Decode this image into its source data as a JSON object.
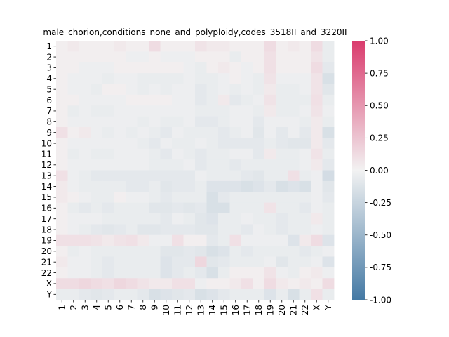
{
  "chart_data": {
    "type": "heatmap",
    "title": "male_chorion,conditions_none_and_polyploidy,codes_3518II_and_3220II",
    "xlabel": "",
    "ylabel": "",
    "x_categories": [
      "1",
      "2",
      "3",
      "4",
      "5",
      "6",
      "7",
      "8",
      "9",
      "10",
      "11",
      "12",
      "13",
      "14",
      "15",
      "16",
      "17",
      "18",
      "19",
      "20",
      "21",
      "22",
      "X",
      "Y"
    ],
    "y_categories": [
      "1",
      "2",
      "3",
      "4",
      "5",
      "6",
      "7",
      "8",
      "9",
      "10",
      "11",
      "12",
      "13",
      "14",
      "15",
      "16",
      "17",
      "18",
      "19",
      "20",
      "21",
      "22",
      "X",
      "Y"
    ],
    "colorbar": {
      "vmin": -1.0,
      "vmax": 1.0,
      "ticks": [
        "-1.00",
        "-0.75",
        "-0.50",
        "-0.25",
        "0.00",
        "0.25",
        "0.50",
        "0.75",
        "1.00"
      ],
      "colors": {
        "low": "#4479a4",
        "mid": "#f2f2f2",
        "high": "#da3b6d"
      }
    },
    "values": [
      [
        0.02,
        0.05,
        0.02,
        0.02,
        0.02,
        0.05,
        0.02,
        0.02,
        0.12,
        0.02,
        0.02,
        0.02,
        0.08,
        0.05,
        0.05,
        0.02,
        0.02,
        0.02,
        0.12,
        0.02,
        0.05,
        0.02,
        0.12,
        -0.05
      ],
      [
        0.02,
        0.02,
        0.02,
        0.02,
        0.02,
        0.02,
        -0.03,
        -0.03,
        0.02,
        -0.03,
        -0.03,
        -0.03,
        0.02,
        0.02,
        0.02,
        -0.05,
        0.02,
        0.02,
        0.1,
        0.02,
        0.02,
        0.02,
        0.08,
        -0.05
      ],
      [
        0.02,
        0.02,
        -0.03,
        -0.03,
        -0.03,
        0.02,
        0.02,
        0.02,
        0.02,
        0.02,
        0.02,
        -0.03,
        -0.05,
        0.02,
        0.05,
        0.02,
        -0.03,
        0.02,
        0.1,
        0.02,
        0.02,
        0.02,
        0.12,
        -0.08
      ],
      [
        0.02,
        -0.03,
        -0.03,
        -0.03,
        -0.05,
        -0.03,
        -0.03,
        -0.05,
        -0.05,
        -0.05,
        -0.05,
        -0.03,
        -0.05,
        -0.05,
        -0.03,
        0.02,
        -0.03,
        -0.05,
        0.08,
        -0.03,
        -0.03,
        -0.03,
        0.08,
        -0.15
      ],
      [
        0.02,
        -0.03,
        -0.03,
        -0.05,
        0.02,
        0.02,
        -0.03,
        -0.05,
        -0.03,
        -0.05,
        -0.03,
        -0.03,
        -0.08,
        -0.05,
        -0.03,
        -0.05,
        -0.03,
        -0.05,
        0.05,
        -0.05,
        -0.05,
        -0.03,
        0.08,
        -0.1
      ],
      [
        0.02,
        0.02,
        -0.03,
        -0.03,
        -0.03,
        -0.03,
        0.02,
        0.02,
        0.02,
        0.02,
        -0.03,
        -0.03,
        -0.08,
        -0.05,
        0.05,
        -0.08,
        -0.05,
        -0.03,
        0.08,
        -0.05,
        -0.05,
        -0.05,
        0.1,
        -0.05
      ],
      [
        0.02,
        -0.05,
        -0.03,
        -0.05,
        -0.05,
        -0.03,
        -0.03,
        -0.03,
        -0.03,
        -0.03,
        -0.03,
        -0.03,
        -0.05,
        -0.05,
        -0.05,
        -0.03,
        -0.03,
        -0.05,
        0.05,
        -0.05,
        -0.05,
        -0.03,
        0.08,
        -0.03
      ],
      [
        0.02,
        -0.03,
        -0.03,
        -0.03,
        -0.03,
        -0.03,
        -0.03,
        -0.05,
        -0.03,
        -0.05,
        -0.05,
        -0.03,
        -0.08,
        -0.08,
        -0.05,
        -0.03,
        -0.03,
        -0.08,
        -0.03,
        -0.03,
        -0.03,
        -0.05,
        0.05,
        -0.05
      ],
      [
        0.1,
        0.02,
        0.05,
        -0.03,
        -0.05,
        -0.03,
        -0.05,
        -0.03,
        -0.05,
        -0.08,
        -0.03,
        -0.05,
        -0.05,
        -0.05,
        -0.08,
        -0.05,
        -0.03,
        -0.1,
        -0.03,
        -0.08,
        -0.03,
        -0.08,
        0.05,
        -0.15
      ],
      [
        0.02,
        -0.03,
        -0.03,
        -0.03,
        -0.03,
        -0.03,
        -0.03,
        -0.05,
        -0.08,
        -0.03,
        -0.05,
        -0.05,
        -0.03,
        -0.05,
        -0.08,
        -0.08,
        -0.08,
        -0.08,
        -0.05,
        -0.08,
        -0.1,
        -0.1,
        0.05,
        -0.08
      ],
      [
        0.02,
        -0.05,
        -0.03,
        -0.05,
        -0.05,
        -0.03,
        -0.03,
        -0.03,
        -0.05,
        -0.08,
        -0.03,
        -0.05,
        -0.08,
        -0.05,
        -0.05,
        -0.03,
        -0.03,
        -0.08,
        0.05,
        -0.05,
        -0.05,
        -0.03,
        0.08,
        -0.05
      ],
      [
        0.02,
        -0.03,
        -0.03,
        -0.03,
        -0.03,
        -0.03,
        -0.03,
        -0.03,
        -0.05,
        -0.05,
        -0.05,
        -0.03,
        -0.08,
        -0.05,
        -0.05,
        -0.08,
        -0.05,
        -0.05,
        -0.05,
        -0.05,
        -0.05,
        -0.03,
        0.05,
        -0.08
      ],
      [
        0.1,
        -0.03,
        -0.05,
        -0.08,
        -0.08,
        -0.08,
        -0.08,
        -0.08,
        -0.08,
        -0.08,
        -0.08,
        -0.08,
        -0.03,
        -0.05,
        -0.05,
        -0.05,
        -0.08,
        -0.1,
        -0.05,
        -0.05,
        0.1,
        -0.05,
        -0.03,
        -0.18
      ],
      [
        0.05,
        -0.03,
        -0.05,
        -0.05,
        -0.05,
        -0.05,
        -0.08,
        -0.08,
        -0.05,
        -0.1,
        -0.08,
        -0.08,
        -0.05,
        -0.12,
        -0.12,
        -0.12,
        -0.15,
        -0.12,
        -0.08,
        -0.15,
        -0.12,
        -0.15,
        -0.03,
        -0.1
      ],
      [
        0.05,
        0.02,
        -0.03,
        -0.05,
        -0.05,
        0.02,
        -0.03,
        -0.03,
        -0.05,
        -0.08,
        -0.05,
        -0.05,
        -0.05,
        -0.15,
        -0.08,
        -0.05,
        -0.05,
        -0.05,
        -0.05,
        -0.05,
        -0.05,
        -0.05,
        -0.03,
        -0.08
      ],
      [
        0.02,
        -0.05,
        -0.08,
        -0.05,
        -0.08,
        -0.05,
        -0.05,
        -0.05,
        -0.1,
        -0.1,
        -0.08,
        -0.1,
        -0.08,
        -0.15,
        -0.15,
        -0.05,
        -0.05,
        -0.05,
        0.08,
        -0.05,
        -0.05,
        -0.08,
        -0.03,
        -0.05
      ],
      [
        0.02,
        -0.03,
        -0.03,
        -0.03,
        -0.05,
        -0.05,
        -0.05,
        -0.05,
        -0.05,
        -0.08,
        -0.03,
        -0.05,
        -0.1,
        -0.12,
        -0.05,
        -0.05,
        -0.03,
        -0.05,
        -0.05,
        -0.08,
        -0.05,
        -0.05,
        0.05,
        -0.05
      ],
      [
        0.02,
        -0.03,
        -0.05,
        -0.08,
        -0.1,
        -0.08,
        -0.05,
        -0.1,
        -0.1,
        -0.08,
        -0.08,
        -0.08,
        -0.1,
        -0.1,
        -0.05,
        -0.05,
        -0.08,
        -0.03,
        -0.05,
        -0.08,
        -0.05,
        -0.05,
        -0.03,
        -0.05
      ],
      [
        0.1,
        0.1,
        0.1,
        0.08,
        0.05,
        0.08,
        0.1,
        0.05,
        -0.03,
        -0.03,
        0.1,
        0.02,
        0.02,
        -0.08,
        -0.05,
        0.1,
        -0.03,
        -0.03,
        -0.03,
        -0.03,
        -0.12,
        0.05,
        0.12,
        -0.12
      ],
      [
        0.02,
        -0.05,
        -0.03,
        -0.05,
        -0.05,
        -0.05,
        -0.05,
        -0.05,
        -0.05,
        -0.1,
        -0.1,
        -0.08,
        -0.1,
        -0.15,
        -0.12,
        -0.05,
        -0.08,
        -0.05,
        -0.05,
        -0.05,
        -0.05,
        -0.08,
        -0.05,
        -0.03
      ],
      [
        0.05,
        -0.03,
        -0.03,
        -0.05,
        -0.08,
        -0.05,
        -0.05,
        -0.05,
        -0.05,
        -0.12,
        -0.08,
        -0.08,
        0.15,
        -0.1,
        -0.08,
        -0.05,
        -0.05,
        -0.05,
        -0.03,
        -0.1,
        -0.05,
        -0.05,
        -0.03,
        -0.12
      ],
      [
        0.02,
        -0.03,
        -0.03,
        -0.05,
        -0.08,
        -0.05,
        -0.05,
        -0.05,
        -0.05,
        -0.12,
        -0.08,
        -0.05,
        -0.08,
        -0.15,
        -0.05,
        0.02,
        0.02,
        0.02,
        0.08,
        -0.03,
        -0.05,
        0.02,
        0.05,
        -0.03
      ],
      [
        0.12,
        0.12,
        0.15,
        0.12,
        0.1,
        0.15,
        0.12,
        0.08,
        0.05,
        0.05,
        0.1,
        0.1,
        -0.03,
        0.02,
        0.02,
        0.05,
        0.1,
        0.02,
        0.12,
        0.05,
        0.02,
        0.05,
        0.02,
        0.12
      ],
      [
        -0.05,
        -0.05,
        -0.08,
        -0.1,
        -0.08,
        -0.05,
        -0.05,
        -0.08,
        -0.15,
        -0.12,
        -0.1,
        -0.08,
        -0.15,
        -0.12,
        -0.08,
        -0.05,
        -0.05,
        -0.05,
        -0.12,
        -0.05,
        -0.15,
        -0.05,
        0.1,
        -0.05
      ]
    ]
  }
}
